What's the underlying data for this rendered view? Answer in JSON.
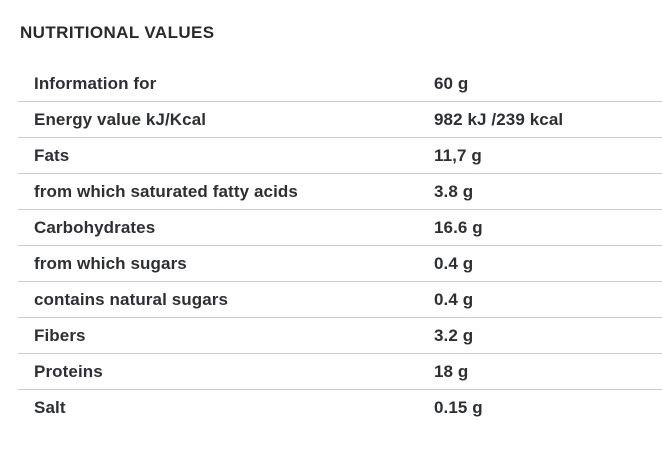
{
  "title": "NUTRITIONAL VALUES",
  "table": {
    "rows": [
      {
        "label": "Information for",
        "value": "60 g"
      },
      {
        "label": "Energy value kJ/Kcal",
        "value": "982 kJ /239 kcal"
      },
      {
        "label": "Fats",
        "value": "11,7 g"
      },
      {
        "label": "from which saturated fatty acids",
        "value": "3.8 g"
      },
      {
        "label": "Carbohydrates",
        "value": "16.6 g"
      },
      {
        "label": "from which sugars",
        "value": "0.4 g"
      },
      {
        "label": "contains natural sugars",
        "value": "0.4 g"
      },
      {
        "label": "Fibers",
        "value": "3.2 g"
      },
      {
        "label": "Proteins",
        "value": "18 g"
      },
      {
        "label": "Salt",
        "value": "0.15 g"
      }
    ]
  },
  "colors": {
    "text": "#2c2f35",
    "title": "#27292e",
    "divider": "#cdcdcf",
    "background": "#ffffff"
  }
}
